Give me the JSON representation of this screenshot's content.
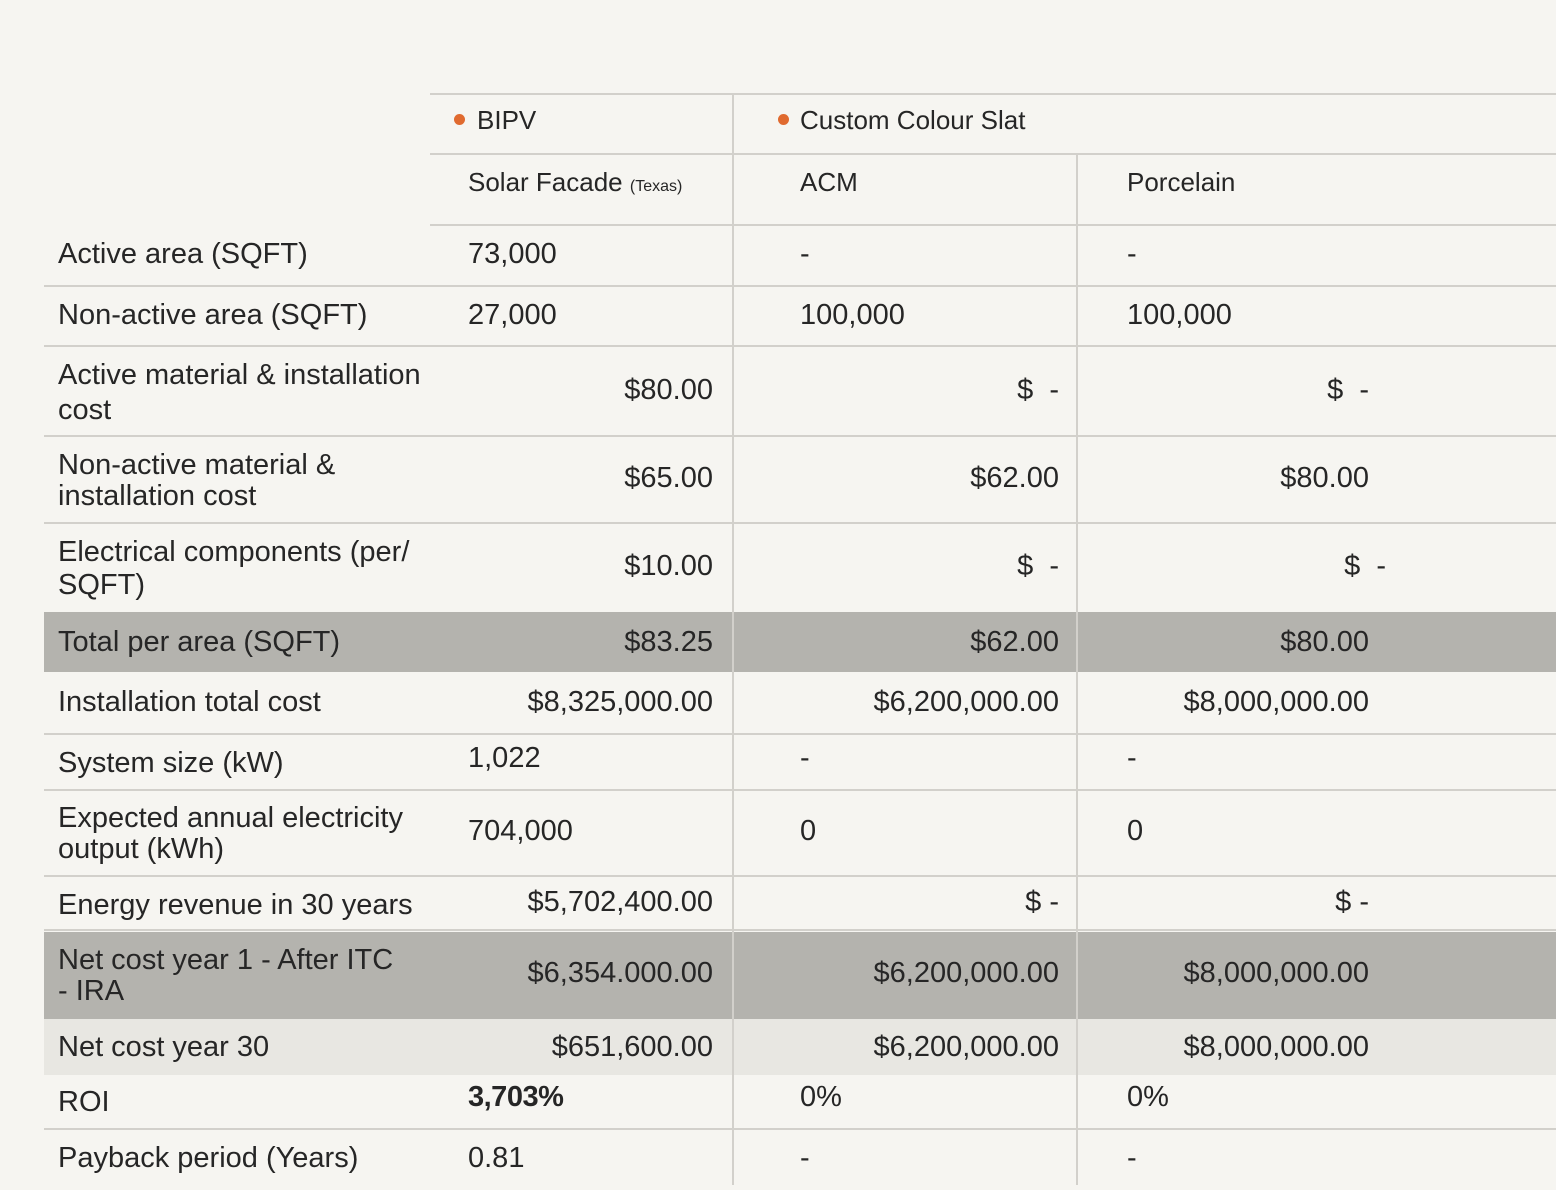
{
  "colors": {
    "accent_dot": "#e06a2f",
    "highlight_dark": "#b4b3ae",
    "highlight_light": "#e8e7e2",
    "background": "#f6f5f1"
  },
  "header": {
    "group1": "BIPV",
    "group2": "Custom Colour Slat",
    "col1": "Solar Facade",
    "col1_note": "(Texas)",
    "col2": "ACM",
    "col3": "Porcelain"
  },
  "rows": [
    {
      "label": "Active area (SQFT)",
      "v1": "73,000",
      "v2": "-",
      "v3": "-"
    },
    {
      "label": "Non-active area (SQFT)",
      "v1": "27,000",
      "v2": "100,000",
      "v3": "100,000"
    },
    {
      "label_a": "Active material & installation",
      "label_b": "cost",
      "v1": "$80.00",
      "v2": "$  -",
      "v3": "$  -"
    },
    {
      "label_a": "Non-active material &",
      "label_b": "installation cost",
      "v1": "$65.00",
      "v2": "$62.00",
      "v3": "$80.00"
    },
    {
      "label_a": "Electrical components (per/",
      "label_b": "SQFT)",
      "v1": "$10.00",
      "v2": "$  -",
      "v3": "$  -"
    },
    {
      "label": "Total per area (SQFT)",
      "v1": "$83.25",
      "v2": "$62.00",
      "v3": "$80.00"
    },
    {
      "label": "Installation total cost",
      "v1": "$8,325,000.00",
      "v2": "$6,200,000.00",
      "v3": "$8,000,000.00"
    },
    {
      "label": "System size (kW)",
      "v1": "1,022",
      "v2": "-",
      "v3": "-"
    },
    {
      "label_a": "Expected annual electricity",
      "label_b": "output (kWh)",
      "v1": "704,000",
      "v2": "0",
      "v3": "0"
    },
    {
      "label": "Energy revenue in 30 years",
      "v1": "$5,702,400.00",
      "v2": "$ -",
      "v3": "$ -"
    },
    {
      "label_a": "Net cost year 1 - After ITC",
      "label_b": "- IRA",
      "v1": "$6,354.000.00",
      "v2": "$6,200,000.00",
      "v3": "$8,000,000.00"
    },
    {
      "label": "Net cost year 30",
      "v1": "$651,600.00",
      "v2": "$6,200,000.00",
      "v3": "$8,000,000.00"
    },
    {
      "label": "ROI",
      "v1": "3,703%",
      "v2": "0%",
      "v3": "0%"
    },
    {
      "label": "Payback period (Years)",
      "v1": "0.81",
      "v2": "-",
      "v3": "-"
    }
  ]
}
